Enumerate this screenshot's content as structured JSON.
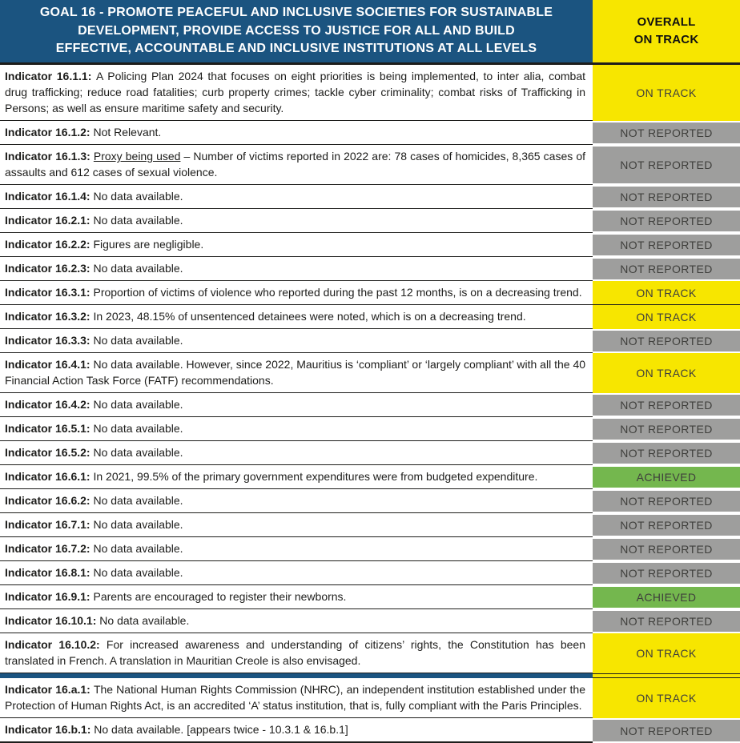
{
  "header": {
    "title": "GOAL 16 - PROMOTE PEACEFUL AND INCLUSIVE SOCIETIES FOR SUSTAINABLE\nDEVELOPMENT, PROVIDE ACCESS TO JUSTICE FOR ALL AND BUILD\nEFFECTIVE, ACCOUNTABLE AND INCLUSIVE INSTITUTIONS AT ALL LEVELS",
    "overall_status": "OVERALL\nON TRACK"
  },
  "colors": {
    "header_blue": "#1b5480",
    "on_track_yellow": "#f7e600",
    "not_reported_gray": "#9e9e9d",
    "achieved_green": "#74b74e",
    "text_dark": "#1d1d1b"
  },
  "status_labels": {
    "on-track": "ON TRACK",
    "not-reported": "NOT REPORTED",
    "achieved": "ACHIEVED"
  },
  "rows": [
    {
      "indicator": "Indicator 16.1.1:",
      "text": "A Policing Plan 2024 that focuses on eight priorities is being implemented, to inter alia, combat drug trafficking; reduce road fatalities; curb property crimes; tackle cyber criminality; combat risks of Trafficking in Persons; as well as ensure maritime safety and security.",
      "status": "ON TRACK",
      "status_key": "on-track"
    },
    {
      "indicator": "Indicator 16.1.2:",
      "text": "Not Relevant.",
      "status": "NOT REPORTED",
      "status_key": "not-reported"
    },
    {
      "indicator": "Indicator 16.1.3:",
      "underlined": "Proxy being used",
      "text": " – Number of victims reported in 2022 are: 78 cases of homicides, 8,365 cases of assaults and 612 cases of sexual violence.",
      "status": "NOT REPORTED",
      "status_key": "not-reported"
    },
    {
      "indicator": "Indicator 16.1.4:",
      "text": "No data available.",
      "status": "NOT REPORTED",
      "status_key": "not-reported"
    },
    {
      "indicator": "Indicator 16.2.1:",
      "text": "No data available.",
      "status": "NOT REPORTED",
      "status_key": "not-reported"
    },
    {
      "indicator": "Indicator 16.2.2:",
      "text": "Figures are negligible.",
      "status": "NOT REPORTED",
      "status_key": "not-reported"
    },
    {
      "indicator": "Indicator 16.2.3:",
      "text": "No data available.",
      "status": "NOT REPORTED",
      "status_key": "not-reported"
    },
    {
      "indicator": "Indicator 16.3.1:",
      "text": "Proportion of victims of violence who reported during the past 12 months, is on a decreasing trend.",
      "status": "ON TRACK",
      "status_key": "on-track"
    },
    {
      "indicator": "Indicator 16.3.2:",
      "text": "In 2023, 48.15% of unsentenced detainees were noted, which is on a decreasing trend.",
      "status": "ON TRACK",
      "status_key": "on-track"
    },
    {
      "indicator": "Indicator 16.3.3:",
      "text": "No data available.",
      "status": "NOT REPORTED",
      "status_key": "not-reported"
    },
    {
      "indicator": "Indicator 16.4.1:",
      "text": "No data available. However, since 2022, Mauritius is ‘compliant’ or ‘largely compliant’ with all the 40 Financial Action Task Force (FATF) recommendations.",
      "status": "ON TRACK",
      "status_key": "on-track"
    },
    {
      "indicator": "Indicator 16.4.2:",
      "text": "No data available.",
      "status": "NOT REPORTED",
      "status_key": "not-reported"
    },
    {
      "indicator": "Indicator 16.5.1:",
      "text": "No data available.",
      "status": "NOT REPORTED",
      "status_key": "not-reported"
    },
    {
      "indicator": "Indicator 16.5.2:",
      "text": "No data available.",
      "status": "NOT REPORTED",
      "status_key": "not-reported"
    },
    {
      "indicator": "Indicator 16.6.1:",
      "text": "In 2021, 99.5% of the primary government expenditures were from budgeted expenditure.",
      "status": "ACHIEVED",
      "status_key": "achieved"
    },
    {
      "indicator": "Indicator 16.6.2:",
      "text": "No data available.",
      "status": "NOT REPORTED",
      "status_key": "not-reported"
    },
    {
      "indicator": "Indicator 16.7.1:",
      "text": "No data available.",
      "status": "NOT REPORTED",
      "status_key": "not-reported"
    },
    {
      "indicator": "Indicator 16.7.2:",
      "text": "No data available.",
      "status": "NOT REPORTED",
      "status_key": "not-reported"
    },
    {
      "indicator": "Indicator 16.8.1:",
      "text": "No data available.",
      "status": "NOT REPORTED",
      "status_key": "not-reported"
    },
    {
      "indicator": "Indicator 16.9.1:",
      "text": "Parents are encouraged to register their newborns.",
      "status": "ACHIEVED",
      "status_key": "achieved"
    },
    {
      "indicator": "Indicator 16.10.1:",
      "text": "No data available.",
      "status": "NOT REPORTED",
      "status_key": "not-reported"
    },
    {
      "indicator": "Indicator 16.10.2:",
      "text": "For increased awareness and understanding of citizens’ rights, the Constitution has been translated in French. A translation in Mauritian Creole is also envisaged.",
      "status": "ON TRACK",
      "status_key": "on-track",
      "divider_after": true
    },
    {
      "indicator": "Indicator 16.a.1:",
      "text": "The National Human Rights Commission (NHRC), an independent institution established under the Protection of Human Rights Act, is an accredited ‘A’ status institution, that is, fully compliant with the Paris Principles.",
      "status": "ON TRACK",
      "status_key": "on-track"
    },
    {
      "indicator": "Indicator 16.b.1:",
      "text": "No data available. [appears twice - 10.3.1 & 16.b.1]",
      "status": "NOT REPORTED",
      "status_key": "not-reported"
    }
  ]
}
